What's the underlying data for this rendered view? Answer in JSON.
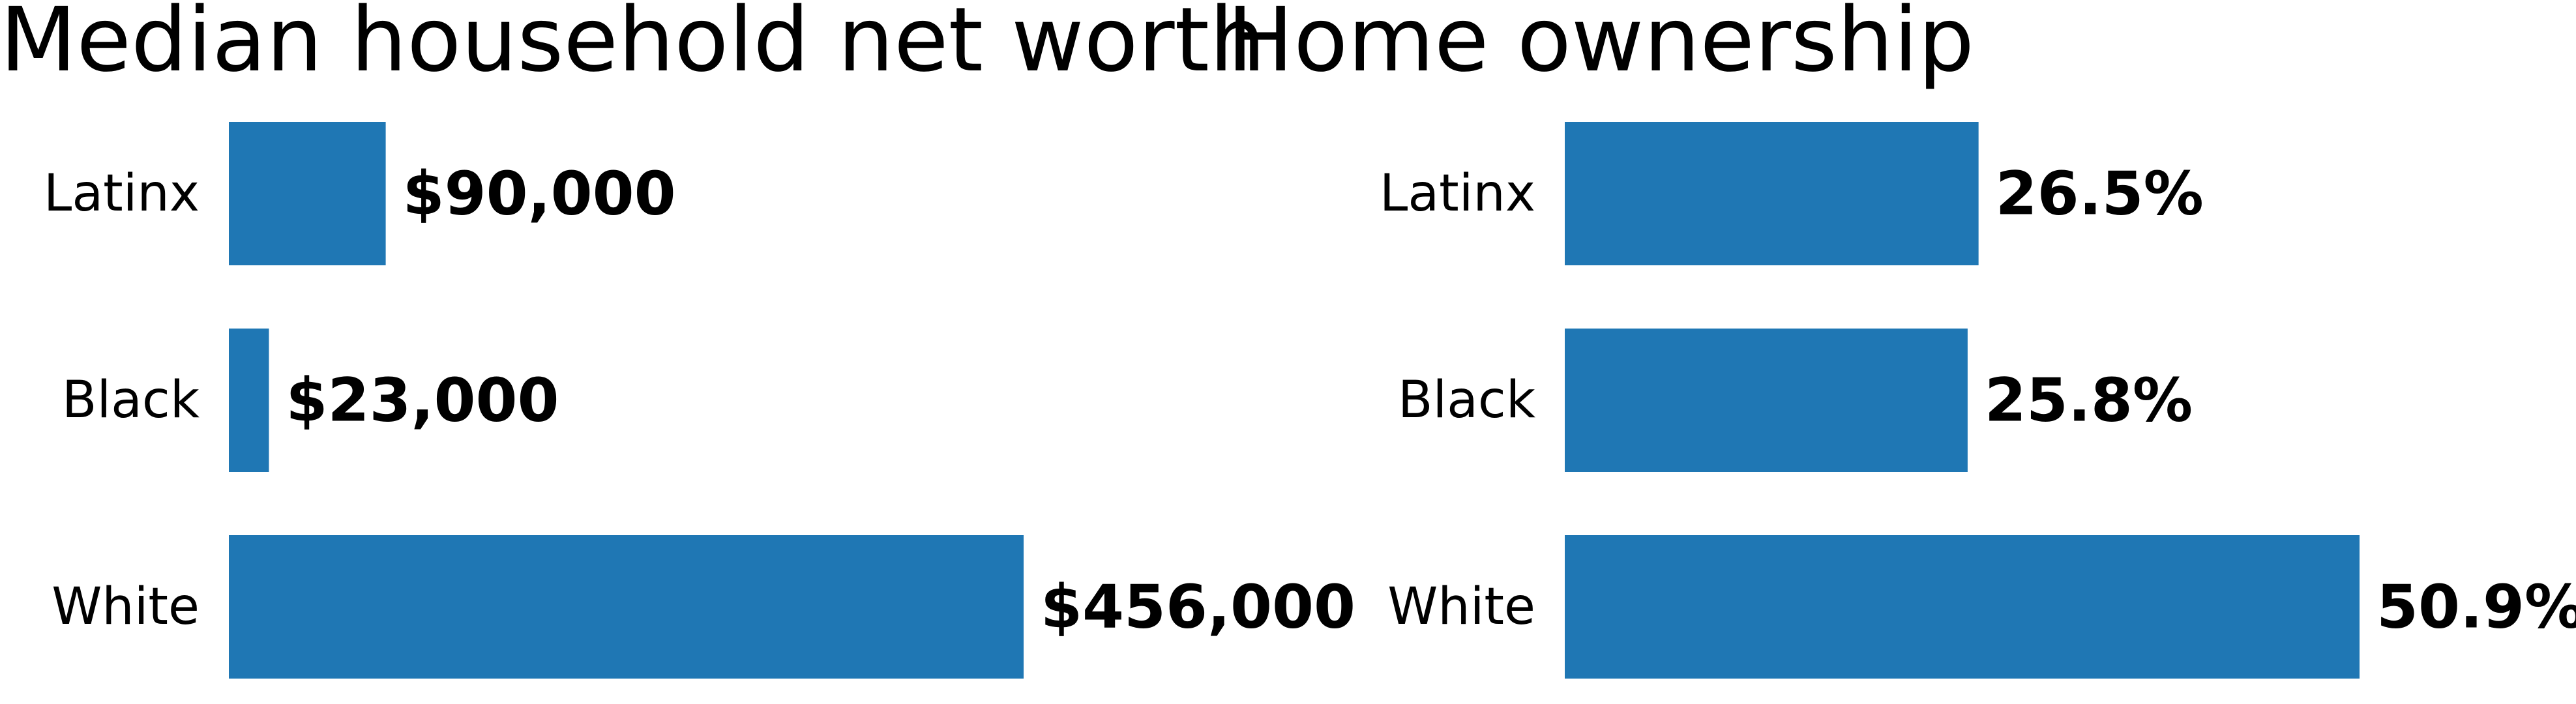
{
  "chart_data": [
    {
      "type": "bar",
      "orientation": "horizontal",
      "title": "Median household net worth",
      "categories": [
        "Latinx",
        "Black",
        "White"
      ],
      "values": [
        90000,
        23000,
        456000
      ],
      "value_labels": [
        "$90,000",
        "$23,000",
        "$456,000"
      ],
      "xlabel": "",
      "ylabel": "",
      "xlim": [
        0,
        456000
      ],
      "grid": false,
      "axes_visible": false,
      "bar_color": "#1f77b4"
    },
    {
      "type": "bar",
      "orientation": "horizontal",
      "title": "Home ownership",
      "categories": [
        "Latinx",
        "Black",
        "White"
      ],
      "values": [
        26.5,
        25.8,
        50.9
      ],
      "value_labels": [
        "26.5%",
        "25.8%",
        "50.9%"
      ],
      "xlabel": "",
      "ylabel": "",
      "xlim": [
        0,
        50.9
      ],
      "grid": false,
      "axes_visible": false,
      "bar_color": "#1f77b4"
    }
  ]
}
